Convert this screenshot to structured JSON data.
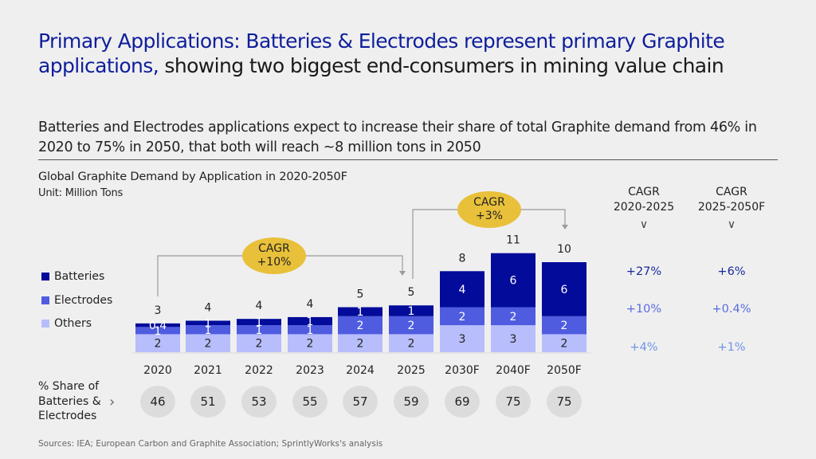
{
  "header": {
    "title_highlight": "Primary Applications: Batteries & Electrodes represent primary Graphite applications,",
    "title_rest": " showing two biggest end-consumers in mining value chain",
    "subtitle": "Batteries and Electrodes applications expect to increase their share of total Graphite demand from 46% in 2020 to 75% in 2050, that both will reach ~8 million tons in 2050"
  },
  "chart_data": {
    "type": "bar",
    "stacked": true,
    "title": "Global Graphite Demand by Application in 2020-2050F",
    "unit": "Unit: Million Tons",
    "categories": [
      "2020",
      "2021",
      "2022",
      "2023",
      "2024",
      "2025",
      "2030F",
      "2040F",
      "2050F"
    ],
    "series": [
      {
        "name": "Others",
        "color": "#b8bdfb",
        "values": [
          2,
          2,
          2,
          2,
          2,
          2,
          3,
          3,
          2
        ],
        "labels": [
          "2",
          "2",
          "2",
          "2",
          "2",
          "2",
          "3",
          "3",
          "2"
        ]
      },
      {
        "name": "Electrodes",
        "color": "#4f5ce0",
        "values": [
          0.8,
          1,
          1,
          1,
          2,
          2,
          2,
          2,
          2
        ],
        "labels": [
          "1",
          "1",
          "1",
          "1",
          "2",
          "2",
          "2",
          "2",
          "2"
        ]
      },
      {
        "name": "Batteries",
        "color": "#020b9a",
        "values": [
          0.4,
          0.5,
          0.7,
          0.9,
          1,
          1.2,
          4,
          6,
          6
        ],
        "labels": [
          "0.4",
          "1",
          "1",
          "1",
          "1",
          "1",
          "4",
          "6",
          "6"
        ]
      }
    ],
    "totals": [
      "3",
      "4",
      "4",
      "4",
      "5",
      "5",
      "8",
      "11",
      "10"
    ],
    "legend": [
      "Batteries",
      "Electrodes",
      "Others"
    ],
    "legend_position": "left",
    "annotations": [
      {
        "label": "CAGR",
        "value": "+10%",
        "from": "2020",
        "to": "2025"
      },
      {
        "label": "CAGR",
        "value": "+3%",
        "from": "2025",
        "to": "2050F"
      }
    ],
    "share_row": {
      "label": "% Share of Batteries & Electrodes",
      "values": [
        "46",
        "51",
        "53",
        "55",
        "57",
        "59",
        "69",
        "75",
        "75"
      ]
    },
    "cagr_table": {
      "columns": [
        {
          "header1": "CAGR",
          "header2": "2020-2025",
          "values": [
            "+27%",
            "+10%",
            "+4%"
          ]
        },
        {
          "header1": "CAGR",
          "header2": "2025-2050F",
          "values": [
            "+6%",
            "+0.4%",
            "+1%"
          ]
        }
      ],
      "row_colors": [
        "#1a2a9c",
        "#5a6be0",
        "#6f94e6"
      ]
    }
  },
  "footer": {
    "sources": "Sources: IEA; European Carbon and Graphite Association; SprintlyWorks's analysis"
  }
}
